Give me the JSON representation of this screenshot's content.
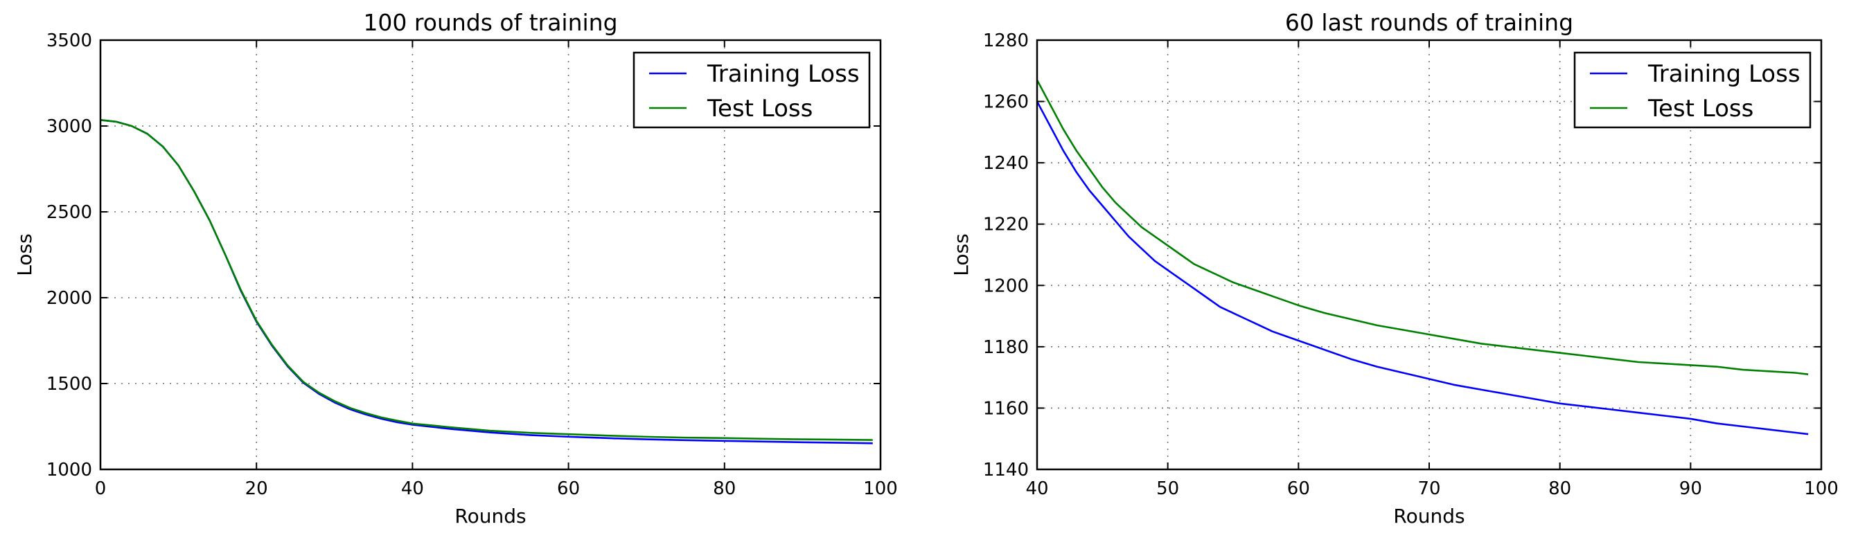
{
  "chart_data": [
    {
      "type": "line",
      "title": "100 rounds of training",
      "xlabel": "Rounds",
      "ylabel": "Loss",
      "xlim": [
        0,
        100
      ],
      "ylim": [
        1000,
        3500
      ],
      "xticks": [
        0,
        20,
        40,
        60,
        80,
        100
      ],
      "yticks": [
        1000,
        1500,
        2000,
        2500,
        3000,
        3500
      ],
      "grid": true,
      "legend": "top-right",
      "series": [
        {
          "name": "Training Loss",
          "color": "#0000ff",
          "x": [
            0,
            2,
            4,
            6,
            8,
            10,
            12,
            14,
            16,
            18,
            20,
            22,
            24,
            26,
            28,
            30,
            32,
            34,
            36,
            38,
            40,
            45,
            50,
            55,
            60,
            65,
            70,
            75,
            80,
            85,
            90,
            95,
            99
          ],
          "y": [
            3035,
            3025,
            3000,
            2955,
            2880,
            2770,
            2620,
            2450,
            2250,
            2040,
            1860,
            1720,
            1600,
            1505,
            1440,
            1390,
            1350,
            1320,
            1295,
            1275,
            1260,
            1235,
            1215,
            1200,
            1190,
            1182,
            1175,
            1170,
            1166,
            1162,
            1158,
            1155,
            1152
          ]
        },
        {
          "name": "Test Loss",
          "color": "#008000",
          "x": [
            0,
            2,
            4,
            6,
            8,
            10,
            12,
            14,
            16,
            18,
            20,
            22,
            24,
            26,
            28,
            30,
            32,
            34,
            36,
            38,
            40,
            45,
            50,
            55,
            60,
            65,
            70,
            75,
            80,
            85,
            90,
            95,
            99
          ],
          "y": [
            3035,
            3025,
            3000,
            2955,
            2880,
            2770,
            2620,
            2450,
            2250,
            2045,
            1865,
            1725,
            1605,
            1510,
            1447,
            1398,
            1358,
            1328,
            1303,
            1284,
            1267,
            1245,
            1225,
            1213,
            1205,
            1197,
            1190,
            1185,
            1182,
            1178,
            1175,
            1173,
            1171
          ]
        }
      ]
    },
    {
      "type": "line",
      "title": "60 last rounds of training",
      "xlabel": "Rounds",
      "ylabel": "Loss",
      "xlim": [
        40,
        100
      ],
      "ylim": [
        1140,
        1280
      ],
      "xticks": [
        40,
        50,
        60,
        70,
        80,
        90,
        100
      ],
      "yticks": [
        1140,
        1160,
        1180,
        1200,
        1220,
        1240,
        1260,
        1280
      ],
      "grid": true,
      "legend": "top-right",
      "series": [
        {
          "name": "Training Loss",
          "color": "#0000ff",
          "x": [
            40,
            41,
            42,
            43,
            44,
            45,
            46,
            47,
            48,
            49,
            50,
            51,
            52,
            53,
            54,
            55,
            56,
            57,
            58,
            59,
            60,
            62,
            64,
            66,
            68,
            70,
            72,
            74,
            76,
            78,
            80,
            82,
            84,
            86,
            88,
            90,
            92,
            94,
            96,
            98,
            99
          ],
          "y": [
            1260,
            1252,
            1244,
            1237,
            1231,
            1226,
            1221,
            1216,
            1212,
            1208,
            1205,
            1202,
            1199,
            1196,
            1193,
            1191,
            1189,
            1187,
            1185,
            1183.5,
            1182,
            1179,
            1176,
            1173.5,
            1171.5,
            1169.5,
            1167.5,
            1166,
            1164.5,
            1163,
            1161.5,
            1160.5,
            1159.5,
            1158.5,
            1157.5,
            1156.5,
            1155,
            1154,
            1153,
            1152,
            1151.5
          ]
        },
        {
          "name": "Test Loss",
          "color": "#008000",
          "x": [
            40,
            41,
            42,
            43,
            44,
            45,
            46,
            47,
            48,
            49,
            50,
            51,
            52,
            53,
            54,
            55,
            56,
            57,
            58,
            59,
            60,
            62,
            64,
            66,
            68,
            70,
            72,
            74,
            76,
            78,
            80,
            82,
            84,
            86,
            88,
            90,
            92,
            94,
            96,
            98,
            99
          ],
          "y": [
            1267,
            1259,
            1251,
            1244,
            1238,
            1232,
            1227,
            1223,
            1219,
            1216,
            1213,
            1210,
            1207,
            1205,
            1203,
            1201,
            1199.5,
            1198,
            1196.5,
            1195,
            1193.5,
            1191,
            1189,
            1187,
            1185.5,
            1184,
            1182.5,
            1181,
            1180,
            1179,
            1178,
            1177,
            1176,
            1175,
            1174.5,
            1174,
            1173.5,
            1172.5,
            1172,
            1171.5,
            1171
          ]
        }
      ]
    }
  ]
}
